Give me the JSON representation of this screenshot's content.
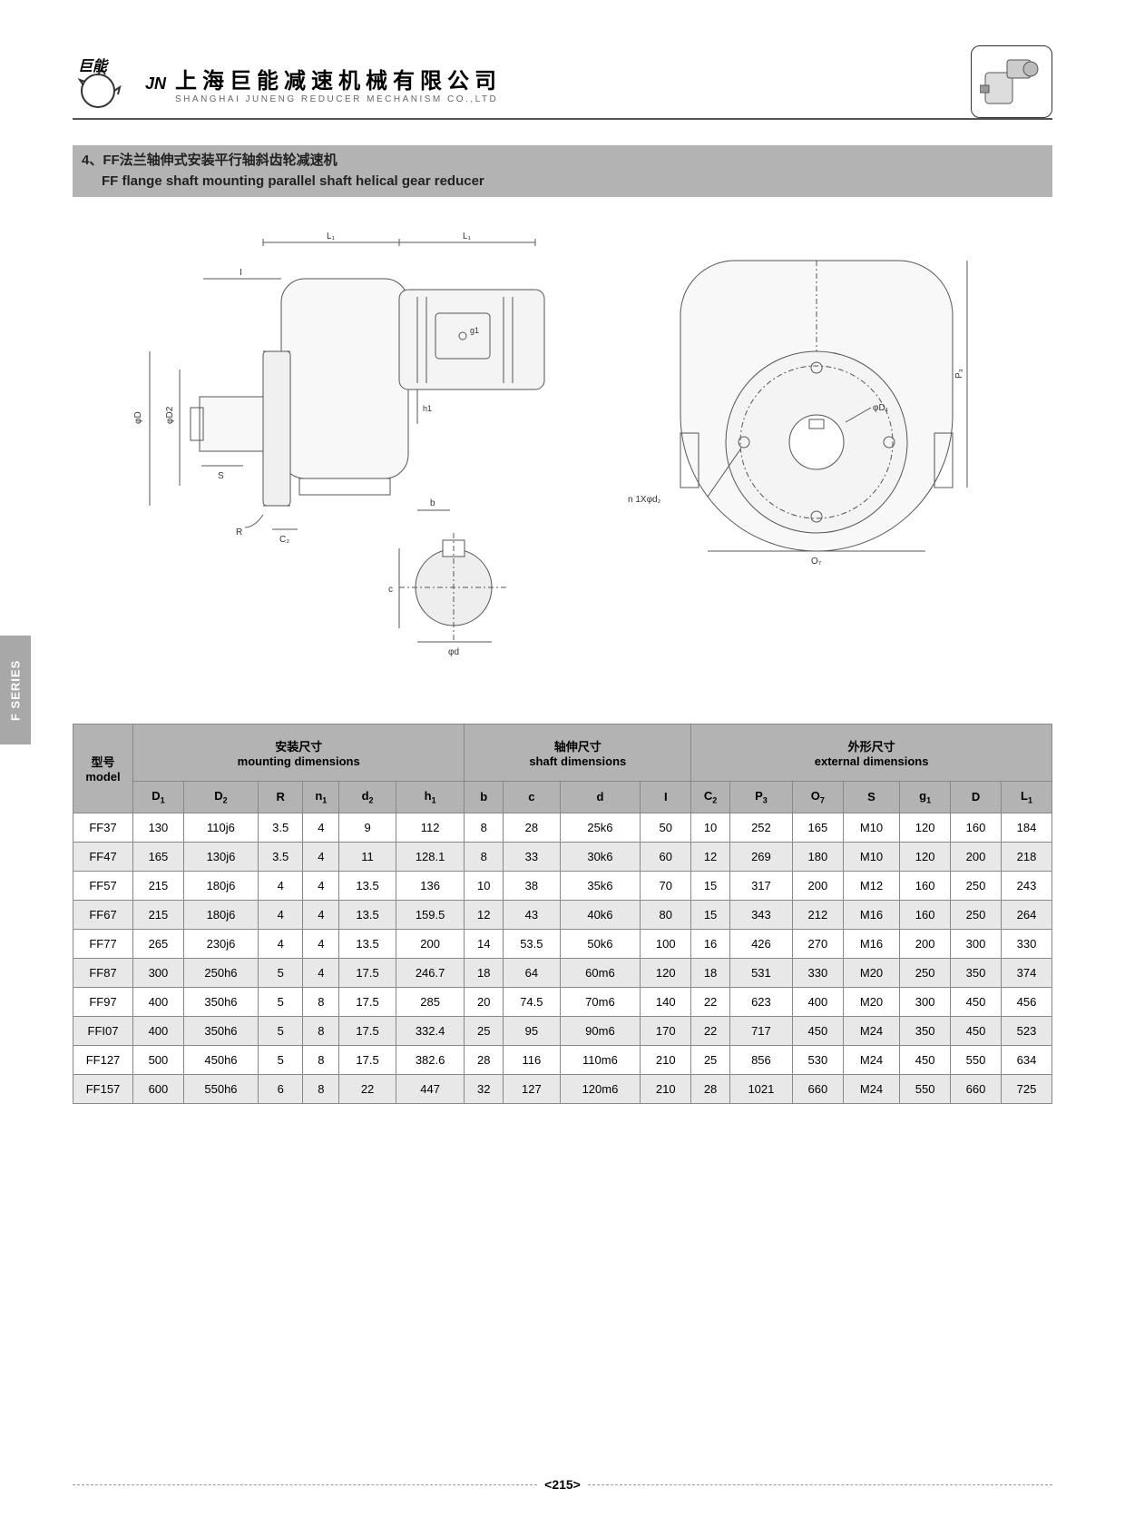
{
  "side_tab": "F SERIES",
  "header": {
    "logo_jn": "巨能",
    "logo_jn_en": "JN",
    "company_cn": "上海巨能减速机械有限公司",
    "company_en": "SHANGHAI JUNENG REDUCER MECHANISM CO.,LTD"
  },
  "title": {
    "prefix": "4、",
    "cn": "FF法兰轴伸式安装平行轴斜齿轮减速机",
    "en": "FF flange shaft mounting parallel shaft helical gear reducer"
  },
  "diagram_labels": {
    "L1_left": "L₁",
    "L1_right": "L₁",
    "I": "I",
    "g1": "g1",
    "h1": "h1",
    "phiD": "φD",
    "phiD2": "φD2",
    "S": "S",
    "R": "R",
    "C2": "C₂",
    "b": "b",
    "c": "c",
    "phid": "φd",
    "n1Xphid2": "n 1Xφd₂",
    "P3": "P₃",
    "phiD1": "φD₁",
    "O7": "O₇"
  },
  "table": {
    "model_label_cn": "型号",
    "model_label_en": "model",
    "group1_cn": "安装尺寸",
    "group1_en": "mounting dimensions",
    "group2_cn": "轴伸尺寸",
    "group2_en": "shaft dimensions",
    "group3_cn": "外形尺寸",
    "group3_en": "external dimensions",
    "cols": [
      "D₁",
      "D₂",
      "R",
      "n₁",
      "d₂",
      "h₁",
      "b",
      "c",
      "d",
      "I",
      "C₂",
      "P₃",
      "O₇",
      "S",
      "g₁",
      "D",
      "L₁"
    ],
    "rows": [
      {
        "m": "FF37",
        "v": [
          "130",
          "110j6",
          "3.5",
          "4",
          "9",
          "112",
          "8",
          "28",
          "25k6",
          "50",
          "10",
          "252",
          "165",
          "M10",
          "120",
          "160",
          "184"
        ]
      },
      {
        "m": "FF47",
        "v": [
          "165",
          "130j6",
          "3.5",
          "4",
          "11",
          "128.1",
          "8",
          "33",
          "30k6",
          "60",
          "12",
          "269",
          "180",
          "M10",
          "120",
          "200",
          "218"
        ]
      },
      {
        "m": "FF57",
        "v": [
          "215",
          "180j6",
          "4",
          "4",
          "13.5",
          "136",
          "10",
          "38",
          "35k6",
          "70",
          "15",
          "317",
          "200",
          "M12",
          "160",
          "250",
          "243"
        ]
      },
      {
        "m": "FF67",
        "v": [
          "215",
          "180j6",
          "4",
          "4",
          "13.5",
          "159.5",
          "12",
          "43",
          "40k6",
          "80",
          "15",
          "343",
          "212",
          "M16",
          "160",
          "250",
          "264"
        ]
      },
      {
        "m": "FF77",
        "v": [
          "265",
          "230j6",
          "4",
          "4",
          "13.5",
          "200",
          "14",
          "53.5",
          "50k6",
          "100",
          "16",
          "426",
          "270",
          "M16",
          "200",
          "300",
          "330"
        ]
      },
      {
        "m": "FF87",
        "v": [
          "300",
          "250h6",
          "5",
          "4",
          "17.5",
          "246.7",
          "18",
          "64",
          "60m6",
          "120",
          "18",
          "531",
          "330",
          "M20",
          "250",
          "350",
          "374"
        ]
      },
      {
        "m": "FF97",
        "v": [
          "400",
          "350h6",
          "5",
          "8",
          "17.5",
          "285",
          "20",
          "74.5",
          "70m6",
          "140",
          "22",
          "623",
          "400",
          "M20",
          "300",
          "450",
          "456"
        ]
      },
      {
        "m": "FFI07",
        "v": [
          "400",
          "350h6",
          "5",
          "8",
          "17.5",
          "332.4",
          "25",
          "95",
          "90m6",
          "170",
          "22",
          "717",
          "450",
          "M24",
          "350",
          "450",
          "523"
        ]
      },
      {
        "m": "FF127",
        "v": [
          "500",
          "450h6",
          "5",
          "8",
          "17.5",
          "382.6",
          "28",
          "116",
          "110m6",
          "210",
          "25",
          "856",
          "530",
          "M24",
          "450",
          "550",
          "634"
        ]
      },
      {
        "m": "FF157",
        "v": [
          "600",
          "550h6",
          "6",
          "8",
          "22",
          "447",
          "32",
          "127",
          "120m6",
          "210",
          "28",
          "1021",
          "660",
          "M24",
          "550",
          "660",
          "725"
        ]
      }
    ]
  },
  "page_number": "<215>",
  "colors": {
    "header_bg": "#b3b3b3",
    "row_alt": "#e8e8e8",
    "border": "#888888",
    "line": "#555555"
  }
}
